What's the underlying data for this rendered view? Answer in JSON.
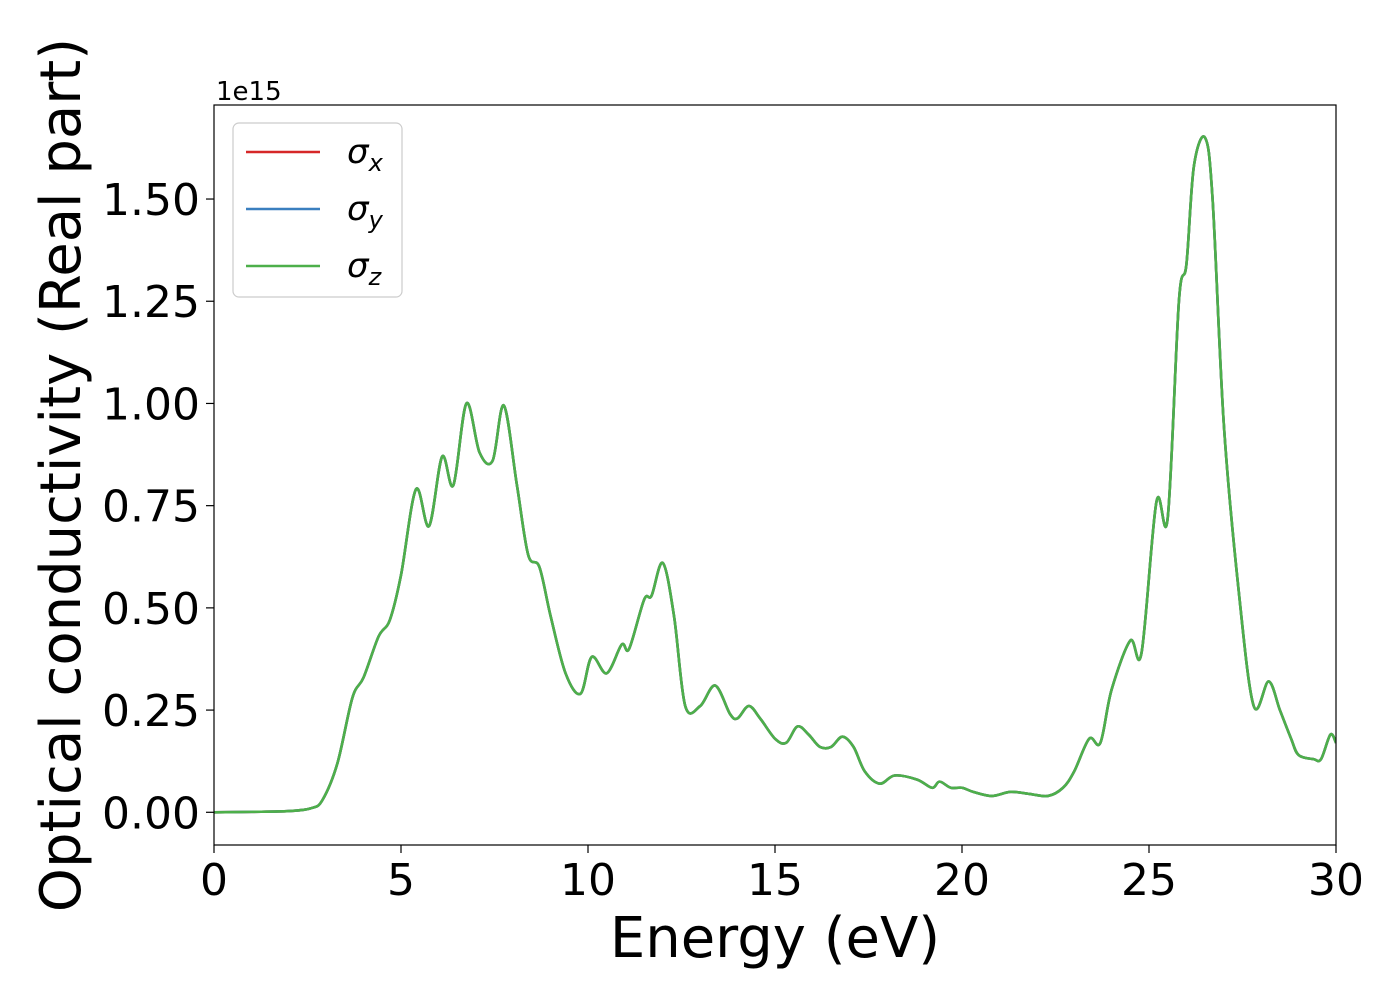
{
  "chart_data": {
    "type": "line",
    "xlabel": "Energy (eV)",
    "ylabel": "Optical conductivity (Real part)",
    "offset_label": "1e15",
    "xlim": [
      0,
      30
    ],
    "ylim": [
      -0.08,
      1.73
    ],
    "x_ticks": [
      0,
      5,
      10,
      15,
      20,
      25,
      30
    ],
    "x_tick_labels": [
      "0",
      "5",
      "10",
      "15",
      "20",
      "25",
      "30"
    ],
    "y_ticks": [
      0,
      0.25,
      0.5,
      0.75,
      1.0,
      1.25,
      1.5
    ],
    "y_tick_labels": [
      "0.00",
      "0.25",
      "0.50",
      "0.75",
      "1.00",
      "1.25",
      "1.50"
    ],
    "grid": false,
    "legend_position": "top-left",
    "x": [
      0,
      1,
      2,
      2.6,
      2.9,
      3.3,
      3.7,
      4.0,
      4.4,
      4.7,
      5.0,
      5.4,
      5.75,
      6.1,
      6.4,
      6.75,
      7.1,
      7.45,
      7.75,
      8.1,
      8.4,
      8.7,
      9.0,
      9.4,
      9.8,
      10.1,
      10.5,
      10.9,
      11.1,
      11.5,
      11.7,
      12.0,
      12.3,
      12.6,
      13.0,
      13.4,
      13.8,
      14.0,
      14.3,
      14.6,
      15.0,
      15.3,
      15.6,
      15.9,
      16.2,
      16.5,
      16.8,
      17.1,
      17.4,
      17.8,
      18.2,
      18.8,
      19.2,
      19.4,
      19.7,
      20.0,
      20.3,
      20.8,
      21.3,
      21.8,
      22.3,
      22.7,
      23.0,
      23.4,
      23.7,
      24.0,
      24.5,
      24.8,
      25.2,
      25.5,
      25.8,
      26.0,
      26.2,
      26.5,
      26.7,
      27.0,
      27.4,
      27.8,
      28.2,
      28.5,
      28.8,
      29.0,
      29.4,
      29.6,
      29.85,
      30
    ],
    "series": [
      {
        "name": "σx",
        "color": "#d62728",
        "values": [
          0,
          0.001,
          0.003,
          0.01,
          0.03,
          0.12,
          0.28,
          0.33,
          0.43,
          0.47,
          0.58,
          0.79,
          0.7,
          0.87,
          0.8,
          1.0,
          0.88,
          0.86,
          0.995,
          0.8,
          0.63,
          0.6,
          0.48,
          0.34,
          0.29,
          0.38,
          0.34,
          0.41,
          0.4,
          0.52,
          0.53,
          0.61,
          0.48,
          0.26,
          0.26,
          0.31,
          0.24,
          0.23,
          0.26,
          0.23,
          0.18,
          0.17,
          0.21,
          0.19,
          0.16,
          0.16,
          0.185,
          0.16,
          0.1,
          0.07,
          0.09,
          0.08,
          0.06,
          0.075,
          0.06,
          0.06,
          0.05,
          0.04,
          0.05,
          0.045,
          0.04,
          0.06,
          0.1,
          0.18,
          0.17,
          0.3,
          0.42,
          0.39,
          0.76,
          0.72,
          1.25,
          1.34,
          1.58,
          1.65,
          1.5,
          0.95,
          0.54,
          0.26,
          0.32,
          0.25,
          0.18,
          0.14,
          0.13,
          0.13,
          0.19,
          0.17
        ]
      },
      {
        "name": "σy",
        "color": "#3a7fbf",
        "values": [
          0,
          0.001,
          0.003,
          0.01,
          0.03,
          0.12,
          0.28,
          0.33,
          0.43,
          0.47,
          0.58,
          0.79,
          0.7,
          0.87,
          0.8,
          1.0,
          0.88,
          0.86,
          0.995,
          0.8,
          0.63,
          0.6,
          0.48,
          0.34,
          0.29,
          0.38,
          0.34,
          0.41,
          0.4,
          0.52,
          0.53,
          0.61,
          0.48,
          0.26,
          0.26,
          0.31,
          0.24,
          0.23,
          0.26,
          0.23,
          0.18,
          0.17,
          0.21,
          0.19,
          0.16,
          0.16,
          0.185,
          0.16,
          0.1,
          0.07,
          0.09,
          0.08,
          0.06,
          0.075,
          0.06,
          0.06,
          0.05,
          0.04,
          0.05,
          0.045,
          0.04,
          0.06,
          0.1,
          0.18,
          0.17,
          0.3,
          0.42,
          0.39,
          0.76,
          0.72,
          1.25,
          1.34,
          1.58,
          1.65,
          1.5,
          0.95,
          0.54,
          0.26,
          0.32,
          0.25,
          0.18,
          0.14,
          0.13,
          0.13,
          0.19,
          0.17
        ]
      },
      {
        "name": "σz",
        "color": "#4daf4a",
        "values": [
          0,
          0.001,
          0.003,
          0.01,
          0.03,
          0.12,
          0.28,
          0.33,
          0.43,
          0.47,
          0.58,
          0.79,
          0.7,
          0.87,
          0.8,
          1.0,
          0.88,
          0.86,
          0.995,
          0.8,
          0.63,
          0.6,
          0.48,
          0.34,
          0.29,
          0.38,
          0.34,
          0.41,
          0.4,
          0.52,
          0.53,
          0.61,
          0.48,
          0.26,
          0.26,
          0.31,
          0.24,
          0.23,
          0.26,
          0.23,
          0.18,
          0.17,
          0.21,
          0.19,
          0.16,
          0.16,
          0.185,
          0.16,
          0.1,
          0.07,
          0.09,
          0.08,
          0.06,
          0.075,
          0.06,
          0.06,
          0.05,
          0.04,
          0.05,
          0.045,
          0.04,
          0.06,
          0.1,
          0.18,
          0.17,
          0.3,
          0.42,
          0.39,
          0.76,
          0.72,
          1.25,
          1.34,
          1.58,
          1.65,
          1.5,
          0.95,
          0.54,
          0.26,
          0.32,
          0.25,
          0.18,
          0.14,
          0.13,
          0.13,
          0.19,
          0.17
        ]
      }
    ]
  }
}
